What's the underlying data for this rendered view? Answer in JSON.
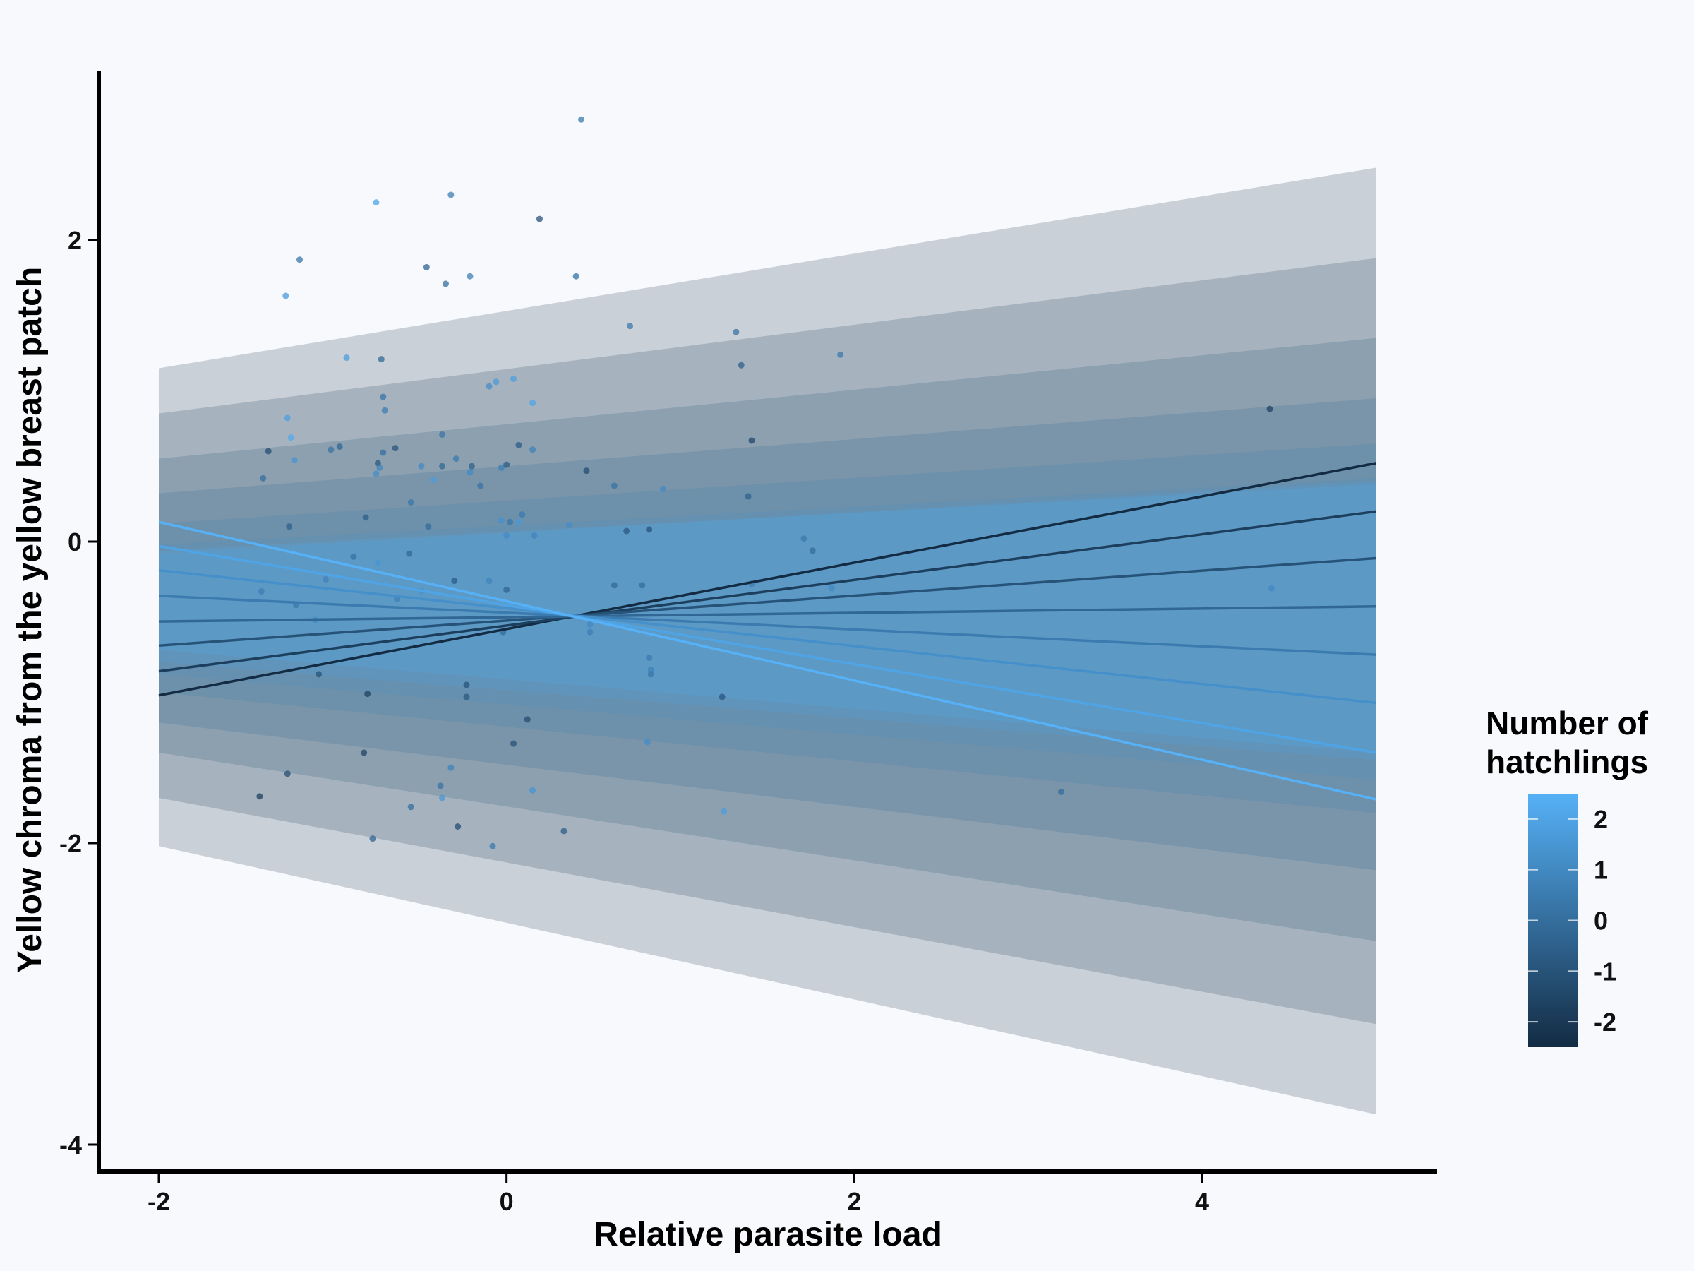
{
  "chart_data": {
    "type": "line",
    "xlabel": "Relative parasite load",
    "ylabel": "Yellow chroma from the yellow breast patch",
    "xlim": [
      -2.4,
      5.4
    ],
    "ylim": [
      -4.18,
      3.15
    ],
    "x_ticks": [
      -2,
      0,
      2,
      4
    ],
    "y_ticks": [
      -4,
      -2,
      0,
      2
    ],
    "x_tick_labels": [
      "-2",
      "0",
      "2",
      "4"
    ],
    "y_tick_labels": [
      "-4",
      "-2",
      "0",
      "2"
    ],
    "grid": false,
    "legend": {
      "title_lines": [
        "Number of",
        "hatchlings"
      ],
      "type": "colorbar",
      "position": "right",
      "range": [
        -2.5,
        2.5
      ],
      "tick_values": [
        2,
        1,
        0,
        -1,
        -2
      ],
      "tick_labels": [
        "2",
        "1",
        "0",
        "-1",
        "-2"
      ],
      "color_low": "#132b43",
      "color_high": "#56b1f7"
    },
    "series": [
      {
        "name": "-2.5",
        "x": [
          -2,
          5
        ],
        "y": [
          -1.02,
          0.52
        ],
        "band_lower": [
          -2.02,
          -3.8
        ],
        "band_upper": [
          1.15,
          2.48
        ]
      },
      {
        "name": "-1.75",
        "x": [
          -2,
          5
        ],
        "y": [
          -0.86,
          0.2
        ],
        "band_lower": [
          -1.7,
          -3.2
        ],
        "band_upper": [
          0.85,
          1.88
        ]
      },
      {
        "name": "-1",
        "x": [
          -2,
          5
        ],
        "y": [
          -0.69,
          -0.11
        ],
        "band_lower": [
          -1.4,
          -2.65
        ],
        "band_upper": [
          0.55,
          1.35
        ]
      },
      {
        "name": "-0.25",
        "x": [
          -2,
          5
        ],
        "y": [
          -0.53,
          -0.43
        ],
        "band_lower": [
          -1.2,
          -2.18
        ],
        "band_upper": [
          0.32,
          0.95
        ]
      },
      {
        "name": "0.5",
        "x": [
          -2,
          5
        ],
        "y": [
          -0.36,
          -0.75
        ],
        "band_lower": [
          -1.0,
          -1.8
        ],
        "band_upper": [
          0.12,
          0.65
        ]
      },
      {
        "name": "1.25",
        "x": [
          -2,
          5
        ],
        "y": [
          -0.19,
          -1.07
        ],
        "band_lower": [
          -0.88,
          -1.58
        ],
        "band_upper": [
          -0.02,
          0.42
        ]
      },
      {
        "name": "2",
        "x": [
          -2,
          5
        ],
        "y": [
          -0.03,
          -1.4
        ],
        "band_lower": [
          -0.8,
          -1.45
        ],
        "band_upper": [
          -0.08,
          0.4
        ]
      },
      {
        "name": "2.5",
        "x": [
          -2,
          5
        ],
        "y": [
          0.13,
          -1.71
        ],
        "band_lower": [
          -0.72,
          -1.4
        ],
        "band_upper": [
          -0.06,
          0.38
        ]
      }
    ],
    "points": [
      {
        "x": -1.4,
        "y": 0.42,
        "c": 0.0
      },
      {
        "x": -1.37,
        "y": 0.6,
        "c": -1.2
      },
      {
        "x": -1.41,
        "y": -0.33,
        "c": 0.6
      },
      {
        "x": -1.42,
        "y": -1.69,
        "c": -1.8
      },
      {
        "x": -1.27,
        "y": 1.63,
        "c": 1.6
      },
      {
        "x": -1.19,
        "y": 1.87,
        "c": 0.3
      },
      {
        "x": -1.26,
        "y": 0.82,
        "c": 1.8
      },
      {
        "x": -1.24,
        "y": 0.69,
        "c": 2.2
      },
      {
        "x": -1.22,
        "y": 0.54,
        "c": 1.4
      },
      {
        "x": -1.25,
        "y": 0.1,
        "c": -0.5
      },
      {
        "x": -1.21,
        "y": -0.42,
        "c": 0.4
      },
      {
        "x": -1.26,
        "y": -1.54,
        "c": -1.2
      },
      {
        "x": -1.1,
        "y": -0.52,
        "c": 1.0
      },
      {
        "x": -1.08,
        "y": -0.88,
        "c": -1.0
      },
      {
        "x": -1.04,
        "y": -0.25,
        "c": 0.8
      },
      {
        "x": -1.01,
        "y": 0.61,
        "c": 0.2
      },
      {
        "x": -0.96,
        "y": 0.63,
        "c": -0.3
      },
      {
        "x": -0.92,
        "y": 1.22,
        "c": 1.8
      },
      {
        "x": -0.88,
        "y": -0.1,
        "c": 0.1
      },
      {
        "x": -0.81,
        "y": 0.16,
        "c": -0.6
      },
      {
        "x": -0.82,
        "y": -1.4,
        "c": -1.5
      },
      {
        "x": -0.8,
        "y": -1.01,
        "c": -1.6
      },
      {
        "x": -0.77,
        "y": -1.97,
        "c": -0.4
      },
      {
        "x": -0.75,
        "y": 2.25,
        "c": 2.0
      },
      {
        "x": -0.75,
        "y": 0.45,
        "c": 1.2
      },
      {
        "x": -0.74,
        "y": 0.52,
        "c": -0.8
      },
      {
        "x": -0.73,
        "y": 0.49,
        "c": 0.9
      },
      {
        "x": -0.72,
        "y": 1.21,
        "c": -0.2
      },
      {
        "x": -0.71,
        "y": 0.96,
        "c": 0.3
      },
      {
        "x": -0.7,
        "y": 0.87,
        "c": 0.5
      },
      {
        "x": -0.71,
        "y": 0.59,
        "c": 0.0
      },
      {
        "x": -0.74,
        "y": -0.14,
        "c": 1.5
      },
      {
        "x": -0.64,
        "y": 0.62,
        "c": -0.9
      },
      {
        "x": -0.63,
        "y": -0.38,
        "c": 0.7
      },
      {
        "x": -0.55,
        "y": 0.26,
        "c": 0.4
      },
      {
        "x": -0.56,
        "y": -0.08,
        "c": -0.2
      },
      {
        "x": -0.55,
        "y": -1.76,
        "c": 0.0
      },
      {
        "x": -0.49,
        "y": 0.5,
        "c": 1.0
      },
      {
        "x": -0.49,
        "y": -0.33,
        "c": 1.4
      },
      {
        "x": -0.46,
        "y": 1.82,
        "c": -0.4
      },
      {
        "x": -0.45,
        "y": 0.1,
        "c": -0.1
      },
      {
        "x": -0.42,
        "y": 0.41,
        "c": 1.7
      },
      {
        "x": -0.37,
        "y": 0.71,
        "c": 0.3
      },
      {
        "x": -0.37,
        "y": 0.5,
        "c": -0.2
      },
      {
        "x": -0.38,
        "y": -1.62,
        "c": 0.2
      },
      {
        "x": -0.37,
        "y": -1.7,
        "c": 1.5
      },
      {
        "x": -0.35,
        "y": 1.71,
        "c": 0.0
      },
      {
        "x": -0.32,
        "y": 2.3,
        "c": 0.6
      },
      {
        "x": -0.32,
        "y": -1.5,
        "c": 0.8
      },
      {
        "x": -0.3,
        "y": -0.26,
        "c": -0.6
      },
      {
        "x": -0.29,
        "y": 0.55,
        "c": 0.5
      },
      {
        "x": -0.28,
        "y": -1.89,
        "c": -1.2
      },
      {
        "x": -0.23,
        "y": -0.95,
        "c": -1.0
      },
      {
        "x": -0.23,
        "y": -1.03,
        "c": -0.8
      },
      {
        "x": -0.21,
        "y": 0.46,
        "c": 1.1
      },
      {
        "x": -0.2,
        "y": 0.5,
        "c": -0.5
      },
      {
        "x": -0.21,
        "y": 1.76,
        "c": 0.6
      },
      {
        "x": -0.15,
        "y": 0.37,
        "c": 0.2
      },
      {
        "x": -0.1,
        "y": -0.26,
        "c": 0.9
      },
      {
        "x": -0.1,
        "y": 1.03,
        "c": 1.2
      },
      {
        "x": -0.08,
        "y": -2.02,
        "c": 0.4
      },
      {
        "x": -0.06,
        "y": 1.06,
        "c": 1.6
      },
      {
        "x": -0.03,
        "y": 0.49,
        "c": 0.7
      },
      {
        "x": -0.03,
        "y": 0.14,
        "c": 1.3
      },
      {
        "x": -0.02,
        "y": -0.6,
        "c": 0.0
      },
      {
        "x": 0.0,
        "y": 0.51,
        "c": -0.7
      },
      {
        "x": 0.0,
        "y": 0.04,
        "c": 1.1
      },
      {
        "x": 0.0,
        "y": -0.32,
        "c": -0.3
      },
      {
        "x": 0.02,
        "y": 0.13,
        "c": 0.3
      },
      {
        "x": 0.04,
        "y": 1.08,
        "c": 1.8
      },
      {
        "x": 0.04,
        "y": -1.34,
        "c": -1.0
      },
      {
        "x": 0.07,
        "y": 0.64,
        "c": -0.6
      },
      {
        "x": 0.07,
        "y": 0.13,
        "c": 1.6
      },
      {
        "x": 0.09,
        "y": 0.18,
        "c": 0.5
      },
      {
        "x": 0.12,
        "y": -1.18,
        "c": -1.2
      },
      {
        "x": 0.15,
        "y": 0.92,
        "c": 2.0
      },
      {
        "x": 0.15,
        "y": 0.61,
        "c": 0.8
      },
      {
        "x": 0.15,
        "y": -1.65,
        "c": 1.4
      },
      {
        "x": 0.16,
        "y": 0.04,
        "c": 0.9
      },
      {
        "x": 0.19,
        "y": 2.14,
        "c": -1.0
      },
      {
        "x": 0.36,
        "y": 0.11,
        "c": 1.2
      },
      {
        "x": 0.33,
        "y": -1.92,
        "c": -0.6
      },
      {
        "x": 0.4,
        "y": 1.76,
        "c": 0.1
      },
      {
        "x": 0.43,
        "y": 2.8,
        "c": 0.5
      },
      {
        "x": 0.46,
        "y": 0.47,
        "c": -1.2
      },
      {
        "x": 0.48,
        "y": -0.55,
        "c": 1.0
      },
      {
        "x": 0.48,
        "y": -0.6,
        "c": 0.6
      },
      {
        "x": 0.62,
        "y": 0.37,
        "c": 0.2
      },
      {
        "x": 0.62,
        "y": -0.29,
        "c": -0.2
      },
      {
        "x": 0.69,
        "y": 0.07,
        "c": -0.8
      },
      {
        "x": 0.71,
        "y": 1.43,
        "c": 0.4
      },
      {
        "x": 0.78,
        "y": -0.29,
        "c": 0.0
      },
      {
        "x": 0.82,
        "y": 0.08,
        "c": -1.0
      },
      {
        "x": 0.82,
        "y": -0.77,
        "c": 0.5
      },
      {
        "x": 0.83,
        "y": -0.85,
        "c": 0.7
      },
      {
        "x": 0.83,
        "y": -0.88,
        "c": 0.3
      },
      {
        "x": 0.81,
        "y": -1.33,
        "c": 1.2
      },
      {
        "x": 0.9,
        "y": 0.35,
        "c": 1.0
      },
      {
        "x": 1.24,
        "y": -1.03,
        "c": -0.9
      },
      {
        "x": 1.25,
        "y": -1.79,
        "c": 1.8
      },
      {
        "x": 1.32,
        "y": 1.39,
        "c": 0.2
      },
      {
        "x": 1.35,
        "y": 1.17,
        "c": -0.5
      },
      {
        "x": 1.39,
        "y": 0.3,
        "c": -0.4
      },
      {
        "x": 1.41,
        "y": 0.67,
        "c": -1.4
      },
      {
        "x": 1.41,
        "y": -0.28,
        "c": 0.6
      },
      {
        "x": 1.71,
        "y": 0.02,
        "c": 0.4
      },
      {
        "x": 1.76,
        "y": -0.06,
        "c": 0.0
      },
      {
        "x": 1.87,
        "y": -0.31,
        "c": 1.0
      },
      {
        "x": 1.92,
        "y": 1.24,
        "c": 0.4
      },
      {
        "x": 3.19,
        "y": -1.66,
        "c": 0.0
      },
      {
        "x": 4.39,
        "y": 0.88,
        "c": -1.6
      },
      {
        "x": 4.4,
        "y": -0.31,
        "c": 1.0
      }
    ]
  }
}
